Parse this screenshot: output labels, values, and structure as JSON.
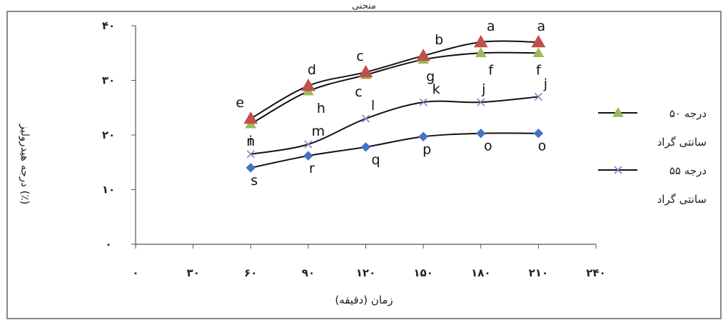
{
  "chart_data": {
    "type": "line",
    "title": "منحنی",
    "xlabel": "زمان (دقیقه)",
    "ylabel": "درجه هیدرولیز (٪)",
    "x_ticks": [
      "٠",
      "٣٠",
      "۶٠",
      "٩٠",
      "١٢٠",
      "١۵٠",
      "١٨٠",
      "٢١٠",
      "٢۴٠"
    ],
    "y_ticks": [
      "٠",
      "١٠",
      "٢٠",
      "٣٠",
      "۴٠"
    ],
    "xlim": [
      0,
      240
    ],
    "ylim": [
      0,
      40
    ],
    "grid": false,
    "legend_placement": "right",
    "x": [
      60,
      90,
      120,
      150,
      180,
      210
    ],
    "series": [
      {
        "name": "درجه ۵٠ سانتی گراد",
        "legend_line1": "درجه ۵٠",
        "legend_line2": "سانتی گراد",
        "marker": "triangle",
        "color": "#9bbb59",
        "values": [
          22,
          28,
          31,
          33.8,
          35,
          35
        ],
        "labels": [
          "i",
          "h",
          "c",
          "g",
          "f",
          "f"
        ],
        "in_legend": true
      },
      {
        "name": "درجه ۵۵ سانتی گراد",
        "legend_line1": "درجه ۵۵",
        "legend_line2": "سانتی گراد",
        "marker": "x",
        "color": "#8e7cc3",
        "values": [
          16.5,
          18.3,
          23,
          26,
          26,
          27
        ],
        "labels": [
          "n",
          "m",
          "l",
          "k",
          "j",
          "j"
        ],
        "in_legend": true
      },
      {
        "name": "",
        "marker": "diamond",
        "color": "#4472c4",
        "values": [
          14,
          16.2,
          17.8,
          19.7,
          20.3,
          20.3
        ],
        "labels": [
          "s",
          "r",
          "q",
          "p",
          "o",
          "o"
        ],
        "in_legend": false
      },
      {
        "name": "",
        "marker": "triangle-red",
        "color": "#c0504d",
        "values": [
          23,
          29,
          31.5,
          34.5,
          37,
          37
        ],
        "labels": [
          "e",
          "d",
          "c",
          "b",
          "a",
          "a"
        ],
        "in_legend": false
      }
    ]
  }
}
